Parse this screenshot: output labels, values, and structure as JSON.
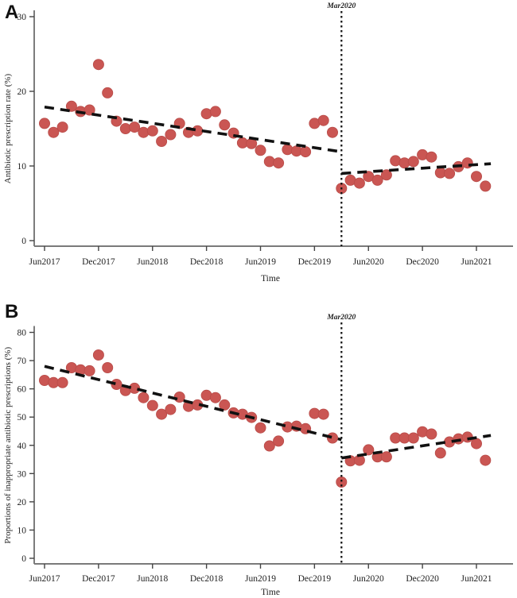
{
  "figure": {
    "background": "#ffffff",
    "point_color": "#CA5653",
    "point_edge_color": "#b84c49",
    "trend_color": "#111111",
    "axis_color": "#444444",
    "baseline_color": "#7a7a7a",
    "months": [
      "Jun2017",
      "Jul2017",
      "Aug2017",
      "Sep2017",
      "Oct2017",
      "Nov2017",
      "Dec2017",
      "Jan2018",
      "Feb2018",
      "Mar2018",
      "Apr2018",
      "May2018",
      "Jun2018",
      "Jul2018",
      "Aug2018",
      "Sep2018",
      "Oct2018",
      "Nov2018",
      "Dec2018",
      "Jan2019",
      "Feb2019",
      "Mar2019",
      "Apr2019",
      "May2019",
      "Jun2019",
      "Jul2019",
      "Aug2019",
      "Sep2019",
      "Oct2019",
      "Nov2019",
      "Dec2019",
      "Jan2020",
      "Feb2020",
      "Mar2020",
      "Apr2020",
      "May2020",
      "Jun2020",
      "Jul2020",
      "Aug2020",
      "Sep2020",
      "Oct2020",
      "Nov2020",
      "Dec2020",
      "Jan2021",
      "Feb2021",
      "Mar2021",
      "Apr2021",
      "May2021",
      "Jun2021",
      "Jul2021"
    ]
  },
  "chart_data": [
    {
      "type": "scatter",
      "panel_label": "A",
      "title": "",
      "ylabel": "Antibiotic prescription rate (%)",
      "xlabel": "Time",
      "x_tick_labels": [
        "Jun2017",
        "Dec2017",
        "Jun2018",
        "Dec2018",
        "Jun2019",
        "Dec2019",
        "Jun2020",
        "Dec2020",
        "Jun2021"
      ],
      "x_tick_month_index": [
        0,
        6,
        12,
        18,
        24,
        30,
        36,
        42,
        48
      ],
      "y_ticks": [
        0,
        10,
        20,
        30
      ],
      "ylim": [
        0,
        30
      ],
      "grid": false,
      "legend": "none",
      "vline_label": "Mar2020",
      "vline_month_index": 33,
      "series": [
        {
          "name": "observed_pre_intervention",
          "start_index": 0,
          "values": [
            15.7,
            14.5,
            15.2,
            18.0,
            17.3,
            17.5,
            23.6,
            19.8,
            16.0,
            15.0,
            15.2,
            14.5,
            14.7,
            13.3,
            14.2,
            15.7,
            14.5,
            14.7,
            17.0,
            17.3,
            15.5,
            14.4,
            13.1,
            13.0,
            12.1,
            10.6,
            10.4,
            12.2,
            12.0,
            11.9,
            15.7,
            16.1,
            14.5
          ]
        },
        {
          "name": "observed_post_intervention",
          "start_index": 33,
          "values": [
            7.0,
            8.1,
            7.7,
            8.6,
            8.1,
            8.8,
            10.7,
            10.4,
            10.6,
            11.5,
            11.2,
            9.1,
            9.0,
            9.9,
            10.4,
            8.6,
            7.3
          ]
        }
      ],
      "trend_pre": {
        "start_month_index": 0,
        "start_value": 17.9,
        "end_month_index": 33,
        "end_value": 11.9
      },
      "trend_post": {
        "start_month_index": 33,
        "start_value": 9.0,
        "end_month_index": 49.6,
        "end_value": 10.3
      }
    },
    {
      "type": "scatter",
      "panel_label": "B",
      "title": "",
      "ylabel": "Proportions of inappropriate antibiotic prescriptions (%)",
      "xlabel": "Time",
      "x_tick_labels": [
        "Jun2017",
        "Dec2017",
        "Jun2018",
        "Dec2018",
        "Jun2019",
        "Dec2019",
        "Jun2020",
        "Dec2020",
        "Jun2021"
      ],
      "x_tick_month_index": [
        0,
        6,
        12,
        18,
        24,
        30,
        36,
        42,
        48
      ],
      "y_ticks": [
        0,
        10,
        20,
        30,
        40,
        50,
        60,
        70,
        80
      ],
      "ylim": [
        0,
        80
      ],
      "grid": false,
      "legend": "none",
      "vline_label": "Mar2020",
      "vline_month_index": 33,
      "series": [
        {
          "name": "observed_pre_intervention",
          "start_index": 0,
          "values": [
            63.0,
            62.2,
            62.2,
            67.5,
            66.7,
            66.4,
            72.0,
            67.5,
            61.6,
            59.4,
            60.2,
            56.9,
            54.1,
            51.0,
            52.7,
            57.1,
            53.8,
            54.3,
            57.7,
            56.9,
            54.3,
            51.5,
            51.0,
            49.9,
            46.2,
            39.8,
            41.5,
            46.5,
            46.8,
            45.9,
            51.3,
            51.0,
            42.6
          ]
        },
        {
          "name": "observed_post_intervention",
          "start_index": 33,
          "values": [
            27.0,
            34.5,
            34.7,
            38.4,
            35.9,
            35.9,
            42.6,
            42.6,
            42.6,
            44.8,
            44.0,
            37.3,
            41.2,
            42.3,
            42.9,
            40.6,
            34.7
          ]
        }
      ],
      "trend_pre": {
        "start_month_index": 0,
        "start_value": 68.0,
        "end_month_index": 33,
        "end_value": 42.0
      },
      "trend_post": {
        "start_month_index": 33,
        "start_value": 35.5,
        "end_month_index": 49.6,
        "end_value": 43.5
      }
    }
  ]
}
